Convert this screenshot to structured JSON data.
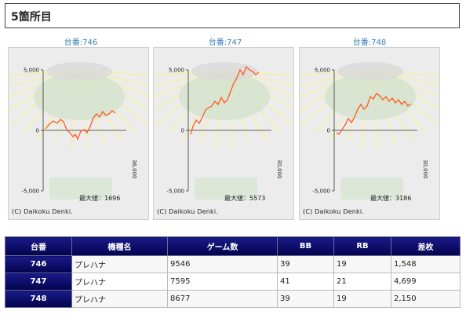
{
  "header": {
    "title": "5箇所目"
  },
  "graphs": [
    {
      "label": "台番:746",
      "y_ticks": [
        "5,000",
        "0",
        "-5,000"
      ],
      "x_tick": "36,000",
      "max_text": "最大値：1696",
      "copyright": "(C) Daikoku Denki.",
      "line_color": "#ff5a1e"
    },
    {
      "label": "台番:747",
      "y_ticks": [
        "5,000",
        "0",
        "-5,000"
      ],
      "x_tick": "30,000",
      "max_text": "最大値：5573",
      "copyright": "(C) Daikoku Denki.",
      "line_color": "#ff5a1e"
    },
    {
      "label": "台番:748",
      "y_ticks": [
        "5,000",
        "0",
        "-5,000"
      ],
      "x_tick": "30,000",
      "max_text": "最大値：3186",
      "copyright": "(C) Daikoku Denki.",
      "line_color": "#ff5a1e"
    }
  ],
  "table": {
    "headers": [
      "台番",
      "機種名",
      "ゲーム数",
      "BB",
      "RB",
      "差枚"
    ],
    "rows": [
      [
        "746",
        "プレハナ",
        "9546",
        "39",
        "19",
        "1,548"
      ],
      [
        "747",
        "プレハナ",
        "7595",
        "41",
        "21",
        "4,699"
      ],
      [
        "748",
        "プレハナ",
        "8677",
        "39",
        "19",
        "2,150"
      ]
    ]
  }
}
